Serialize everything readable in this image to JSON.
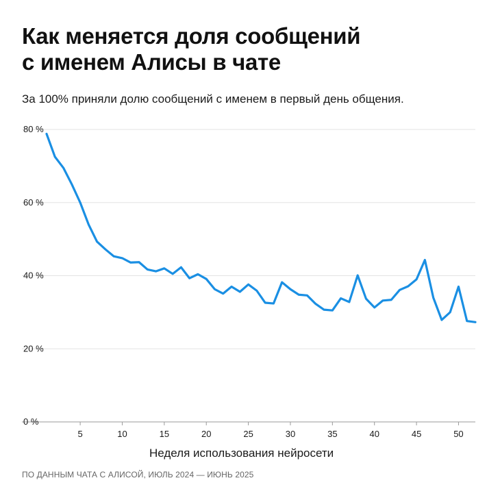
{
  "title_lines": [
    "Как меняется доля сообщений",
    "с именем Алисы в чате"
  ],
  "subtitle": "За 100% приняли долю сообщений с именем в первый день общения.",
  "source": "ПО ДАННЫМ ЧАТА С АЛИСОЙ, ИЮЛЬ 2024 — ИЮНЬ 2025",
  "colors": {
    "line": "#1a8fe3",
    "grid": "#e3e3e3",
    "text": "#111111"
  },
  "chart_data": {
    "type": "line",
    "xlabel": "Неделя использования нейросети",
    "ylabel": "",
    "xlim": [
      1,
      52
    ],
    "ylim": [
      0,
      80
    ],
    "grid": true,
    "x_ticks": [
      5,
      10,
      15,
      20,
      25,
      30,
      35,
      40,
      45,
      50
    ],
    "y_ticks": [
      0,
      20,
      40,
      60,
      80
    ],
    "y_tick_labels": [
      "0 %",
      "20 %",
      "40 %",
      "60 %",
      "80 %"
    ],
    "x": [
      1,
      2,
      3,
      4,
      5,
      6,
      7,
      8,
      9,
      10,
      11,
      12,
      13,
      14,
      15,
      16,
      17,
      18,
      19,
      20,
      21,
      22,
      23,
      24,
      25,
      26,
      27,
      28,
      29,
      30,
      31,
      32,
      33,
      34,
      35,
      36,
      37,
      38,
      39,
      40,
      41,
      42,
      43,
      44,
      45,
      46,
      47,
      48,
      49,
      50,
      51,
      52
    ],
    "series": [
      {
        "values": [
          78.8,
          72.5,
          69.5,
          65,
          60,
          54,
          49.3,
          47.2,
          45.3,
          44.8,
          43.6,
          43.7,
          41.7,
          41.2,
          42,
          40.5,
          42.3,
          39.3,
          40.4,
          39.1,
          36.3,
          35.1,
          37,
          35.6,
          37.6,
          35.9,
          32.6,
          32.4,
          38.2,
          36.3,
          34.8,
          34.6,
          32.3,
          30.7,
          30.5,
          33.8,
          32.8,
          40.1,
          33.7,
          31.3,
          33.2,
          33.4,
          36.1,
          37.1,
          39,
          44.3,
          34,
          27.9,
          30,
          37,
          27.6,
          27.3
        ]
      }
    ]
  }
}
